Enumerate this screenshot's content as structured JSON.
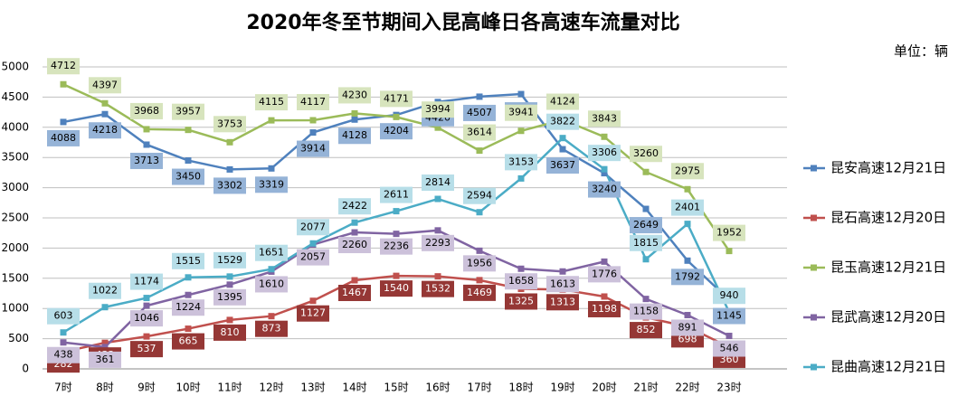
{
  "chart_data": {
    "type": "line",
    "title": "2020年冬至节期间入昆高峰日各高速车流量对比",
    "unit_label": "单位：辆",
    "categories": [
      "7时",
      "8时",
      "9时",
      "10时",
      "11时",
      "12时",
      "13时",
      "14时",
      "15时",
      "16时",
      "17时",
      "18时",
      "19时",
      "20时",
      "21时",
      "22时",
      "23时"
    ],
    "ylim": [
      0,
      5000
    ],
    "yticks": [
      0,
      500,
      1000,
      1500,
      2000,
      2500,
      3000,
      3500,
      4000,
      4500,
      5000
    ],
    "grid": true,
    "legend": "right",
    "series": [
      {
        "name": "昆安高速12月21日",
        "color": "#4f81bd",
        "values": [
          4088,
          4218,
          3713,
          3450,
          3302,
          3319,
          3914,
          4128,
          4204,
          4420,
          4507,
          4550,
          3637,
          3240,
          2649,
          1792,
          1145
        ]
      },
      {
        "name": "昆石高速12月20日",
        "color": "#c0504d",
        "values": [
          282,
          432,
          537,
          665,
          810,
          873,
          1127,
          1467,
          1540,
          1532,
          1469,
          1325,
          1313,
          1198,
          852,
          698,
          360
        ]
      },
      {
        "name": "昆玉高速12月21日",
        "color": "#9bbb59",
        "values": [
          4712,
          4397,
          3968,
          3957,
          3753,
          4115,
          4117,
          4230,
          4171,
          3994,
          3614,
          3941,
          4124,
          3843,
          3260,
          2975,
          1952
        ]
      },
      {
        "name": "昆武高速12月20日",
        "color": "#8064a2",
        "values": [
          438,
          361,
          1046,
          1224,
          1395,
          1610,
          2057,
          2260,
          2236,
          2293,
          1956,
          1658,
          1613,
          1776,
          1158,
          891,
          546
        ]
      },
      {
        "name": "昆曲高速12月21日",
        "color": "#4bacc6",
        "values": [
          603,
          1022,
          1174,
          1515,
          1529,
          1651,
          2077,
          2422,
          2611,
          2814,
          2594,
          3153,
          3822,
          3306,
          1815,
          2401,
          940
        ]
      }
    ]
  }
}
